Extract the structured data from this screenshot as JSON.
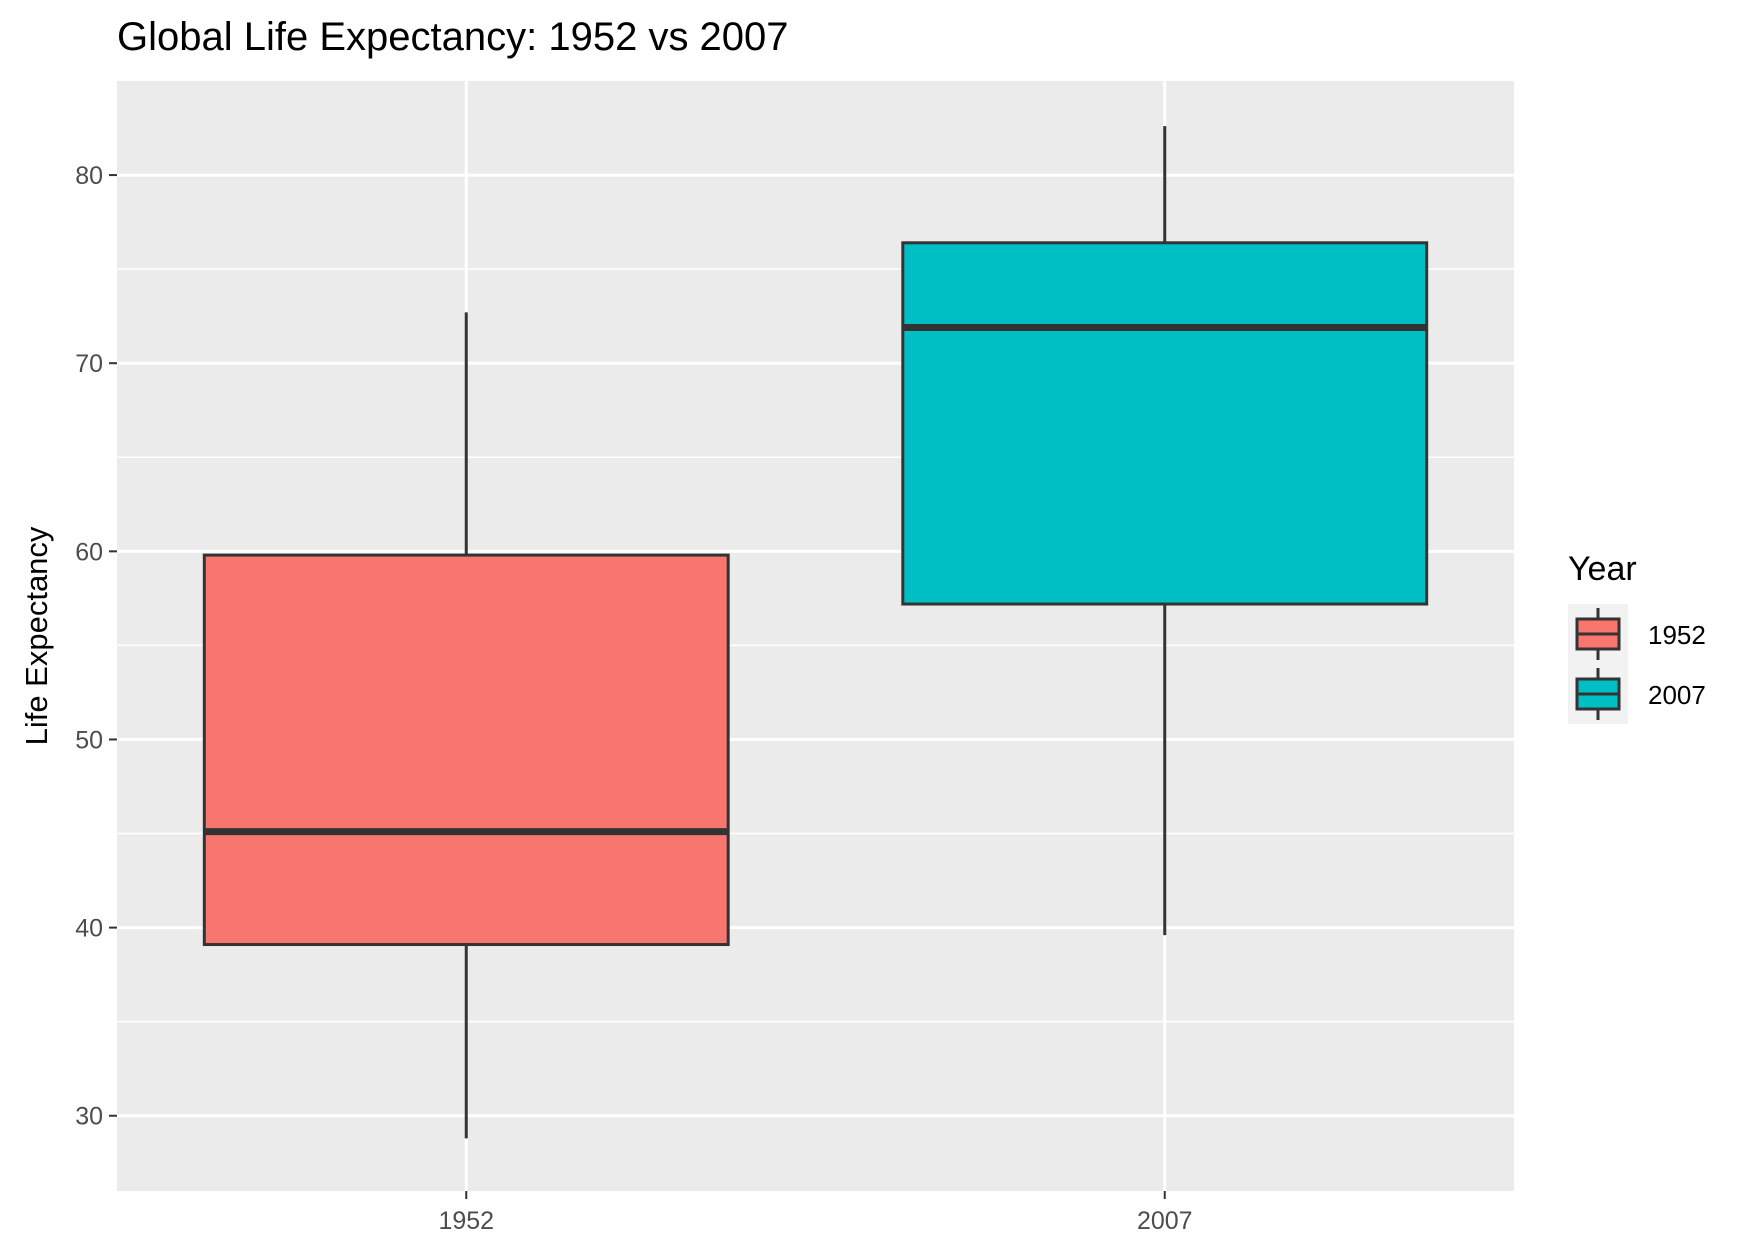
{
  "chart_data": {
    "type": "boxplot",
    "title": "Global Life Expectancy: 1952 vs 2007",
    "xlabel": "",
    "ylabel": "Life Expectancy",
    "ylim": [
      26,
      85
    ],
    "yticks": [
      30,
      40,
      50,
      60,
      70,
      80
    ],
    "grid": true,
    "legend": {
      "title": "Year",
      "position": "right"
    },
    "categories": [
      "1952",
      "2007"
    ],
    "series": [
      {
        "name": "1952",
        "color": "#F8766D",
        "min": 28.8,
        "q1": 39.1,
        "median": 45.1,
        "q3": 59.8,
        "max": 72.7
      },
      {
        "name": "2007",
        "color": "#00BFC4",
        "min": 39.6,
        "q1": 57.2,
        "median": 71.9,
        "q3": 76.4,
        "max": 82.6
      }
    ]
  }
}
